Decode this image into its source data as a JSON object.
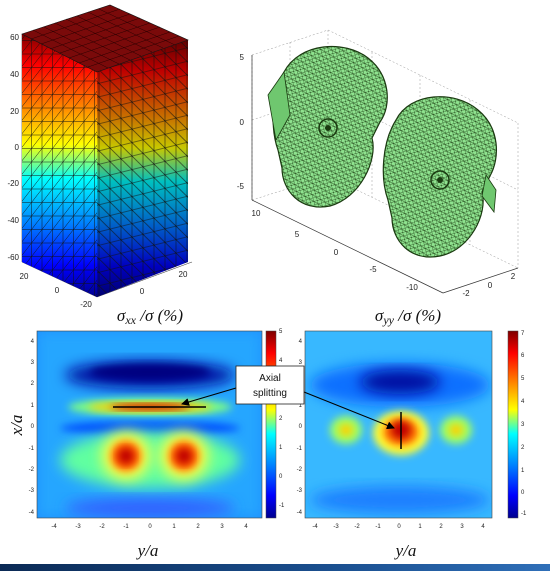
{
  "block3d": {
    "z_ticks": [
      "60",
      "40",
      "20",
      "0",
      "-20",
      "-40",
      "-60"
    ],
    "x_ticks": [
      "20",
      "0",
      "-20"
    ],
    "y_ticks": [
      "0",
      "20"
    ]
  },
  "disks3d": {
    "z_ticks": [
      "5",
      "0",
      "-5"
    ],
    "y_ticks": [
      "10",
      "5",
      "0",
      "-5",
      "-10"
    ],
    "x_ticks": [
      "-2",
      "0",
      "2"
    ]
  },
  "map_left": {
    "title_sym": "σ",
    "title_sub": "xx",
    "title_rest": " /σ  (%)",
    "xlabel": "y/a",
    "ylabel": "x/a",
    "y_ticks": [
      "4",
      "3",
      "2",
      "1",
      "0",
      "-1",
      "-2",
      "-3",
      "-4"
    ],
    "x_ticks": [
      "-4",
      "-3",
      "-2",
      "-1",
      "0",
      "1",
      "2",
      "3",
      "4"
    ],
    "cbar_ticks": [
      "5",
      "4",
      "3",
      "2",
      "1",
      "0",
      "-1"
    ]
  },
  "map_right": {
    "title_sym": "σ",
    "title_sub": "yy",
    "title_rest": " /σ  (%)",
    "xlabel": "y/a",
    "y_ticks": [
      "4",
      "3",
      "2",
      "1",
      "0",
      "-1",
      "-2",
      "-3",
      "-4"
    ],
    "x_ticks": [
      "-4",
      "-3",
      "-2",
      "-1",
      "0",
      "1",
      "2",
      "3",
      "4"
    ],
    "cbar_ticks": [
      "7",
      "6",
      "5",
      "4",
      "3",
      "2",
      "1",
      "0",
      "-1"
    ]
  },
  "callout": {
    "line1": "Axial",
    "line2": "splitting"
  },
  "colors": {
    "jet_low": "#00008f",
    "jet_mid": "#00ffff",
    "jet_high": "#800000",
    "mesh": "#88e088"
  }
}
